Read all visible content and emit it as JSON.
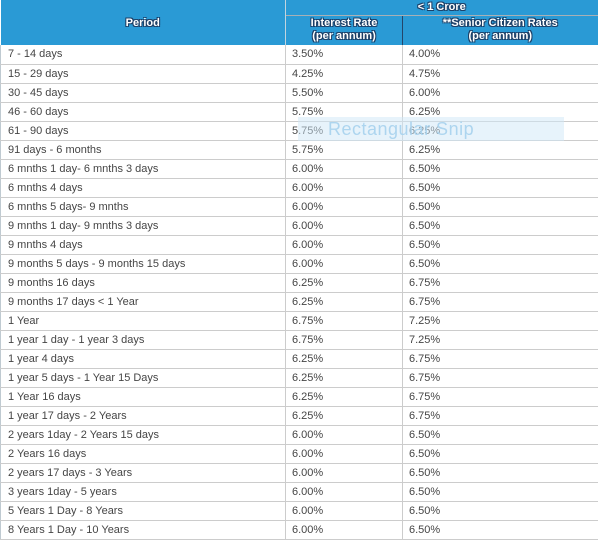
{
  "header": {
    "period": "Period",
    "group": "< 1 Crore",
    "interest": "Interest Rate\n(per annum)",
    "senior": "**Senior Citizen Rates\n(per annum)"
  },
  "watermark": "Rectangular Snip",
  "colors": {
    "header_bg": "#2a9ad5",
    "header_text": "#ffffff",
    "header_outline": "#1d3f66",
    "body_text": "#454545",
    "grid": "#cccccc"
  },
  "chart_data": {
    "type": "table",
    "title": "< 1 Crore",
    "columns": [
      "Period",
      "Interest Rate (per annum)",
      "**Senior Citizen Rates (per annum)"
    ],
    "rows": [
      [
        "7 - 14 days",
        "3.50%",
        "4.00%"
      ],
      [
        "15 - 29 days",
        "4.25%",
        "4.75%"
      ],
      [
        "30 - 45 days",
        "5.50%",
        "6.00%"
      ],
      [
        "46 - 60 days",
        "5.75%",
        "6.25%"
      ],
      [
        "61 - 90 days",
        "5.75%",
        "6.25%"
      ],
      [
        "91 days - 6 months",
        "5.75%",
        "6.25%"
      ],
      [
        "6 mnths 1 day- 6 mnths 3 days",
        "6.00%",
        "6.50%"
      ],
      [
        "6 mnths 4 days",
        "6.00%",
        "6.50%"
      ],
      [
        "6 mnths 5 days- 9 mnths",
        "6.00%",
        "6.50%"
      ],
      [
        "9 mnths 1 day- 9 mnths 3 days",
        "6.00%",
        "6.50%"
      ],
      [
        "9 mnths 4 days",
        "6.00%",
        "6.50%"
      ],
      [
        "9 months 5 days - 9 months 15 days",
        "6.00%",
        "6.50%"
      ],
      [
        "9 months 16 days",
        "6.25%",
        "6.75%"
      ],
      [
        "9 months 17 days < 1 Year",
        "6.25%",
        "6.75%"
      ],
      [
        "1 Year",
        "6.75%",
        "7.25%"
      ],
      [
        "1 year 1 day - 1 year 3 days",
        "6.75%",
        "7.25%"
      ],
      [
        "1 year 4 days",
        "6.25%",
        "6.75%"
      ],
      [
        "1 year 5 days - 1 Year 15 Days",
        "6.25%",
        "6.75%"
      ],
      [
        "1 Year 16 days",
        "6.25%",
        "6.75%"
      ],
      [
        "1 year 17 days - 2 Years",
        "6.25%",
        "6.75%"
      ],
      [
        "2 years 1day - 2 Years 15 days",
        "6.00%",
        "6.50%"
      ],
      [
        "2 Years 16 days",
        "6.00%",
        "6.50%"
      ],
      [
        "2 years 17 days - 3 Years",
        "6.00%",
        "6.50%"
      ],
      [
        "3 years 1day - 5 years",
        "6.00%",
        "6.50%"
      ],
      [
        "5 Years 1 Day - 8 Years",
        "6.00%",
        "6.50%"
      ],
      [
        "8 Years 1 Day - 10 Years",
        "6.00%",
        "6.50%"
      ]
    ]
  }
}
